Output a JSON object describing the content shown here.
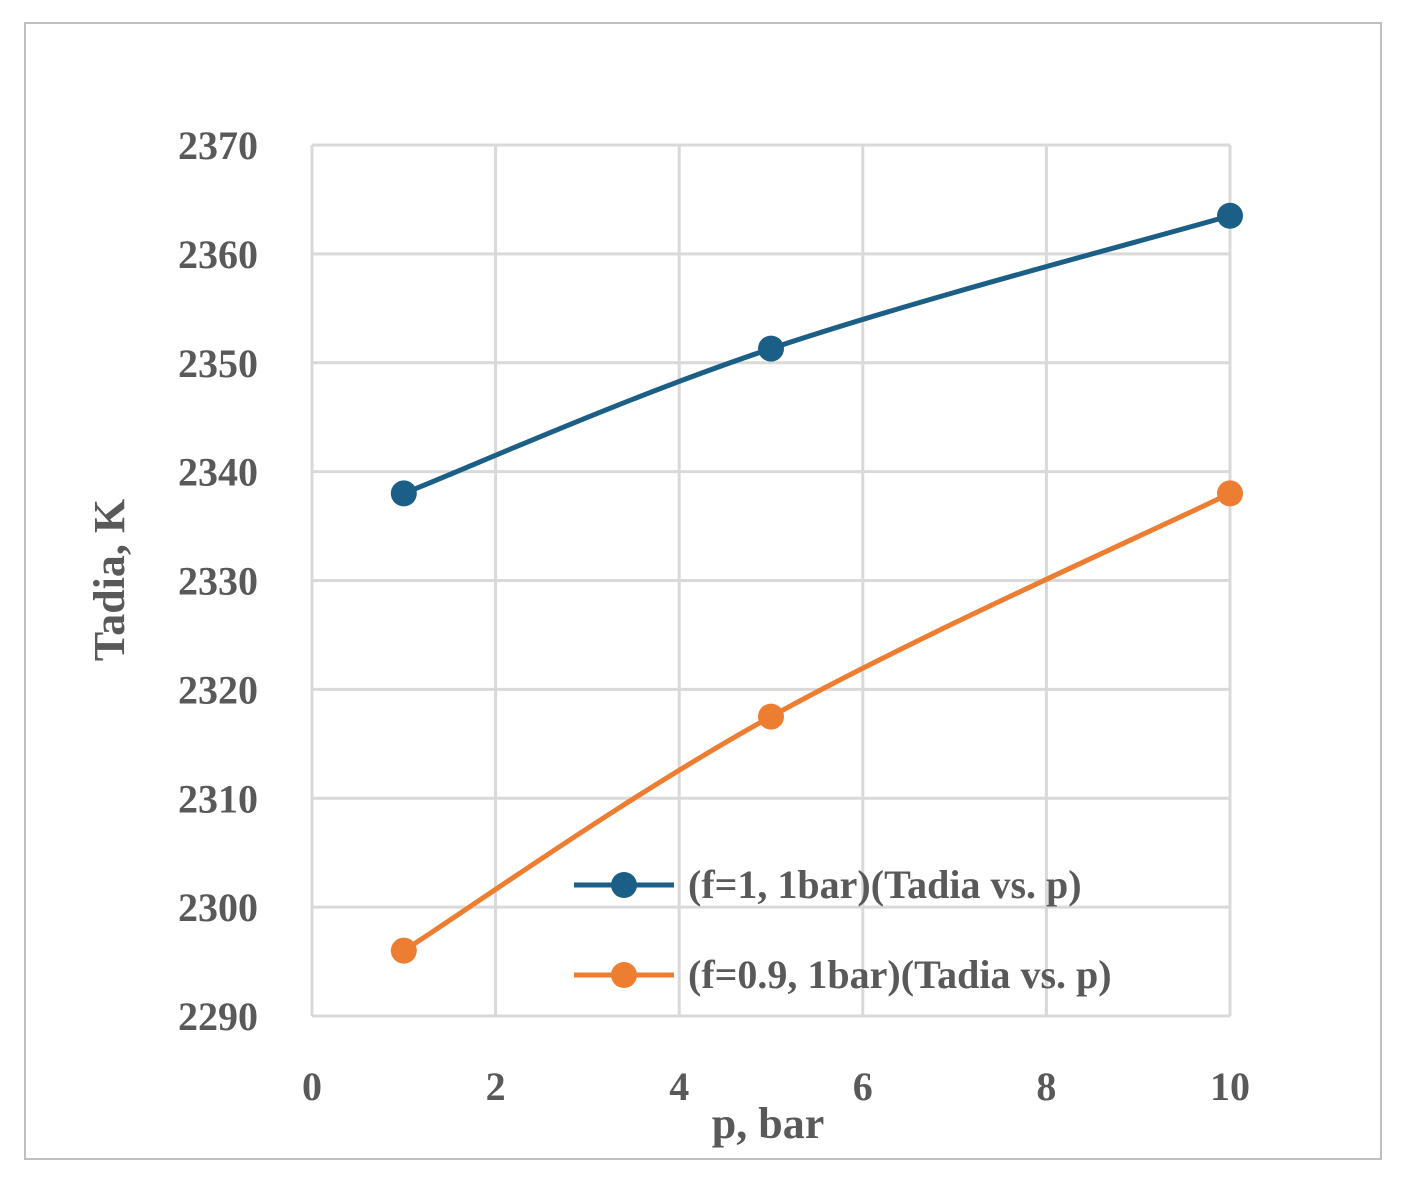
{
  "chart_data": {
    "type": "line",
    "xlabel": "p, bar",
    "ylabel": "Tadia, K",
    "xlim": [
      0,
      10
    ],
    "ylim": [
      2290,
      2370
    ],
    "x_ticks": [
      "0",
      "2",
      "4",
      "6",
      "8",
      "10"
    ],
    "y_ticks": [
      "2290",
      "2300",
      "2310",
      "2320",
      "2330",
      "2340",
      "2350",
      "2360",
      "2370"
    ],
    "grid": true,
    "smooth": true,
    "legend_position": "bottom-right (inside plot)",
    "series": [
      {
        "name": "(f=1, 1bar)(Tadia vs. p)",
        "color": "#1b5e86",
        "x": [
          1,
          5,
          10
        ],
        "y": [
          2338,
          2351.3,
          2363.5
        ]
      },
      {
        "name": "(f=0.9, 1bar)(Tadia vs. p)",
        "color": "#ed7d31",
        "x": [
          1,
          5,
          10
        ],
        "y": [
          2296,
          2317.5,
          2338
        ]
      }
    ]
  }
}
